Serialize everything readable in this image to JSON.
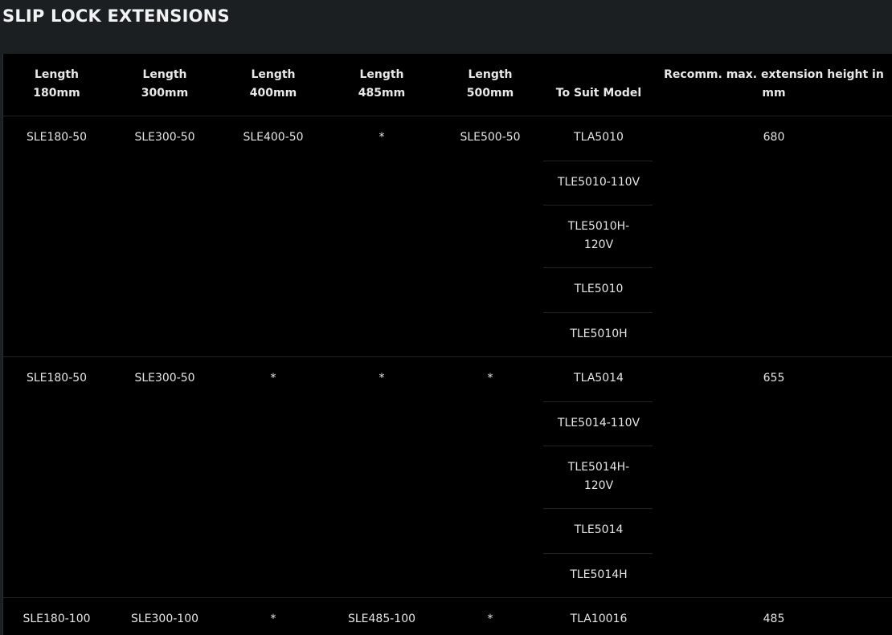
{
  "title": "SLIP LOCK EXTENSIONS",
  "headers": [
    {
      "line1": "Length",
      "line2": "180mm"
    },
    {
      "line1": "Length",
      "line2": "300mm"
    },
    {
      "line1": "Length",
      "line2": "400mm"
    },
    {
      "line1": "Length",
      "line2": "485mm"
    },
    {
      "line1": "Length",
      "line2": "500mm"
    },
    {
      "line1": "",
      "line2": "To Suit Model"
    },
    {
      "line1": "Recomm. max. extension height in",
      "line2": "mm"
    }
  ],
  "groups": [
    {
      "l180": "SLE180-50",
      "l300": "SLE300-50",
      "l400": "SLE400-50",
      "l485": "*",
      "l500": "SLE500-50",
      "models": [
        "TLA5010",
        "TLE5010-110V",
        "TLE5010H-",
        "120V",
        "TLE5010",
        "TLE5010H"
      ],
      "height": "680"
    },
    {
      "l180": "SLE180-50",
      "l300": "SLE300-50",
      "l400": "*",
      "l485": "*",
      "l500": "*",
      "models": [
        "TLA5014",
        "TLE5014-110V",
        "TLE5014H-",
        "120V",
        "TLE5014",
        "TLE5014H"
      ],
      "height": "655"
    },
    {
      "l180": "SLE180-100",
      "l300": "SLE300-100",
      "l400": "*",
      "l485": "SLE485-100",
      "l500": "*",
      "models": [
        "TLA10016"
      ],
      "height": "485"
    }
  ]
}
